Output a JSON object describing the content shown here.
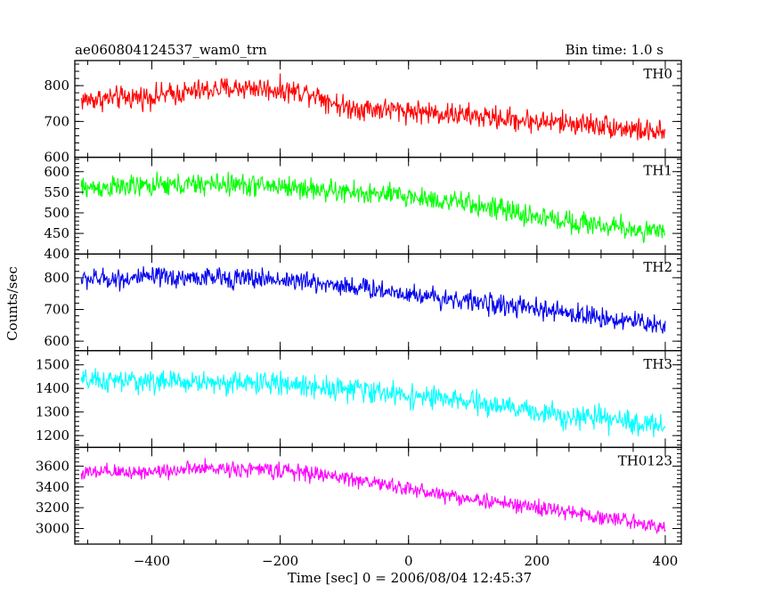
{
  "header": {
    "title": "ae060804124537_wam0_trn",
    "bin_time": "Bin time: 1.0 s"
  },
  "axes": {
    "xlabel": "Time [sec] 0 = 2006/08/04 12:45:37",
    "ylabel": "Counts/sec"
  },
  "colors": {
    "TH0": "#ff0000",
    "TH1": "#00ff00",
    "TH2": "#0000ee",
    "TH3": "#00ffff",
    "TH0123": "#ff00ff",
    "frame": "#000000"
  },
  "chart_data": {
    "type": "line",
    "title": "ae060804124537_wam0_trn",
    "subtitle": "Bin time: 1.0 s",
    "xlabel": "Time [sec] 0 = 2006/08/04 12:45:37",
    "ylabel": "Counts/sec",
    "xlim": [
      -520,
      425
    ],
    "x_range": [
      -510,
      400
    ],
    "x_step": 1.0,
    "xticks": [
      -400,
      -200,
      0,
      200,
      400
    ],
    "grid": false,
    "panels": [
      {
        "name": "TH0",
        "color": "#ff0000",
        "ylim": [
          600,
          870
        ],
        "yticks": [
          600,
          700,
          800
        ],
        "trend": [
          [
            -510,
            760
          ],
          [
            -400,
            770
          ],
          [
            -300,
            790
          ],
          [
            -250,
            795
          ],
          [
            -150,
            780
          ],
          [
            -100,
            740
          ],
          [
            0,
            730
          ],
          [
            100,
            715
          ],
          [
            200,
            700
          ],
          [
            300,
            690
          ],
          [
            400,
            665
          ]
        ],
        "noise_amplitude": 30
      },
      {
        "name": "TH1",
        "color": "#00ff00",
        "ylim": [
          400,
          635
        ],
        "yticks": [
          400,
          450,
          500,
          550,
          600
        ],
        "trend": [
          [
            -510,
            560
          ],
          [
            -400,
            565
          ],
          [
            -300,
            570
          ],
          [
            -200,
            565
          ],
          [
            -100,
            550
          ],
          [
            0,
            540
          ],
          [
            100,
            520
          ],
          [
            200,
            490
          ],
          [
            300,
            470
          ],
          [
            400,
            450
          ]
        ],
        "noise_amplitude": 25
      },
      {
        "name": "TH2",
        "color": "#0000ee",
        "ylim": [
          570,
          875
        ],
        "yticks": [
          600,
          700,
          800
        ],
        "trend": [
          [
            -510,
            795
          ],
          [
            -400,
            800
          ],
          [
            -300,
            800
          ],
          [
            -200,
            795
          ],
          [
            -100,
            775
          ],
          [
            0,
            750
          ],
          [
            100,
            725
          ],
          [
            200,
            700
          ],
          [
            300,
            675
          ],
          [
            400,
            650
          ]
        ],
        "noise_amplitude": 30
      },
      {
        "name": "TH3",
        "color": "#00ffff",
        "ylim": [
          1150,
          1560
        ],
        "yticks": [
          1200,
          1300,
          1400,
          1500
        ],
        "trend": [
          [
            -510,
            1430
          ],
          [
            -400,
            1430
          ],
          [
            -300,
            1425
          ],
          [
            -200,
            1420
          ],
          [
            -100,
            1400
          ],
          [
            0,
            1370
          ],
          [
            100,
            1340
          ],
          [
            200,
            1300
          ],
          [
            300,
            1270
          ],
          [
            400,
            1240
          ]
        ],
        "noise_amplitude": 45
      },
      {
        "name": "TH0123",
        "color": "#ff00ff",
        "ylim": [
          2850,
          3780
        ],
        "yticks": [
          3000,
          3200,
          3400,
          3600
        ],
        "trend": [
          [
            -510,
            3530
          ],
          [
            -400,
            3550
          ],
          [
            -300,
            3580
          ],
          [
            -200,
            3560
          ],
          [
            -100,
            3490
          ],
          [
            0,
            3380
          ],
          [
            100,
            3280
          ],
          [
            200,
            3200
          ],
          [
            300,
            3110
          ],
          [
            400,
            3020
          ]
        ],
        "noise_amplitude": 70
      }
    ]
  }
}
